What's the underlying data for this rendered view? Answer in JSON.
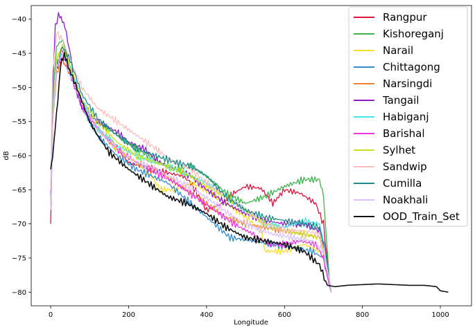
{
  "chart_data": {
    "type": "line",
    "title": "",
    "xlabel": "Longitude",
    "ylabel": "dB",
    "xlim": [
      -50,
      1080
    ],
    "ylim": [
      -82,
      -38
    ],
    "x_ticks": [
      0,
      200,
      400,
      600,
      800,
      1000
    ],
    "y_ticks": [
      -40,
      -45,
      -50,
      -55,
      -60,
      -65,
      -70,
      -75,
      -80
    ],
    "grid": false,
    "legend_position": "top-right",
    "series": [
      {
        "name": "Rangpur",
        "color": "#dc143c",
        "points": [
          [
            0,
            -70
          ],
          [
            5,
            -55
          ],
          [
            15,
            -47
          ],
          [
            30,
            -46
          ],
          [
            50,
            -48
          ],
          [
            80,
            -52
          ],
          [
            120,
            -56
          ],
          [
            170,
            -59
          ],
          [
            200,
            -61
          ],
          [
            260,
            -62
          ],
          [
            300,
            -62.5
          ],
          [
            340,
            -63
          ],
          [
            360,
            -64
          ],
          [
            380,
            -66
          ],
          [
            400,
            -68
          ],
          [
            440,
            -67
          ],
          [
            470,
            -65.5
          ],
          [
            500,
            -64.5
          ],
          [
            540,
            -64.8
          ],
          [
            570,
            -67
          ],
          [
            600,
            -65
          ],
          [
            640,
            -65.5
          ],
          [
            680,
            -67
          ],
          [
            700,
            -70
          ],
          [
            715,
            -78
          ],
          [
            720,
            -80
          ]
        ]
      },
      {
        "name": "Kishoreganj",
        "color": "#3cb44b",
        "points": [
          [
            0,
            -68
          ],
          [
            5,
            -52
          ],
          [
            15,
            -44
          ],
          [
            30,
            -43
          ],
          [
            50,
            -47
          ],
          [
            80,
            -52
          ],
          [
            120,
            -55
          ],
          [
            170,
            -57
          ],
          [
            220,
            -59
          ],
          [
            280,
            -61
          ],
          [
            320,
            -62
          ],
          [
            360,
            -61.5
          ],
          [
            400,
            -63
          ],
          [
            450,
            -65.5
          ],
          [
            500,
            -67
          ],
          [
            550,
            -66
          ],
          [
            600,
            -64.5
          ],
          [
            650,
            -63.5
          ],
          [
            690,
            -63.5
          ],
          [
            700,
            -66
          ],
          [
            715,
            -78
          ],
          [
            720,
            -80
          ]
        ]
      },
      {
        "name": "Narail",
        "color": "#f5dd2a",
        "points": [
          [
            0,
            -68
          ],
          [
            5,
            -55
          ],
          [
            15,
            -46
          ],
          [
            30,
            -44
          ],
          [
            50,
            -47
          ],
          [
            80,
            -52
          ],
          [
            120,
            -56
          ],
          [
            170,
            -59
          ],
          [
            220,
            -61
          ],
          [
            260,
            -63
          ],
          [
            280,
            -65
          ],
          [
            320,
            -65
          ],
          [
            360,
            -64
          ],
          [
            400,
            -65
          ],
          [
            450,
            -67
          ],
          [
            500,
            -69
          ],
          [
            540,
            -71
          ],
          [
            550,
            -74
          ],
          [
            600,
            -74
          ],
          [
            650,
            -73
          ],
          [
            690,
            -74
          ],
          [
            710,
            -76
          ],
          [
            720,
            -80
          ]
        ]
      },
      {
        "name": "Chittagong",
        "color": "#2f8bd0",
        "points": [
          [
            0,
            -68
          ],
          [
            5,
            -55
          ],
          [
            15,
            -47
          ],
          [
            30,
            -45
          ],
          [
            50,
            -48
          ],
          [
            80,
            -53
          ],
          [
            120,
            -57
          ],
          [
            170,
            -60
          ],
          [
            220,
            -62
          ],
          [
            260,
            -63
          ],
          [
            300,
            -64
          ],
          [
            340,
            -66
          ],
          [
            380,
            -68
          ],
          [
            420,
            -70
          ],
          [
            460,
            -72
          ],
          [
            520,
            -72.5
          ],
          [
            570,
            -73
          ],
          [
            620,
            -73.5
          ],
          [
            670,
            -74
          ],
          [
            700,
            -75
          ],
          [
            715,
            -79
          ],
          [
            720,
            -80
          ]
        ]
      },
      {
        "name": "Narsingdi",
        "color": "#f58231",
        "points": [
          [
            0,
            -68
          ],
          [
            5,
            -55
          ],
          [
            15,
            -48
          ],
          [
            30,
            -46
          ],
          [
            50,
            -48
          ],
          [
            80,
            -52
          ],
          [
            120,
            -56
          ],
          [
            170,
            -59
          ],
          [
            220,
            -61
          ],
          [
            270,
            -62
          ],
          [
            320,
            -64
          ],
          [
            360,
            -65.5
          ],
          [
            400,
            -67
          ],
          [
            450,
            -69
          ],
          [
            500,
            -70
          ],
          [
            550,
            -70.5
          ],
          [
            600,
            -71
          ],
          [
            650,
            -71.5
          ],
          [
            690,
            -72
          ],
          [
            705,
            -75
          ],
          [
            720,
            -80
          ]
        ]
      },
      {
        "name": "Tangail",
        "color": "#9018c8",
        "points": [
          [
            0,
            -66
          ],
          [
            5,
            -50
          ],
          [
            12,
            -41
          ],
          [
            20,
            -39.5
          ],
          [
            30,
            -40
          ],
          [
            40,
            -42
          ],
          [
            50,
            -45
          ],
          [
            60,
            -49
          ],
          [
            80,
            -53
          ],
          [
            120,
            -55
          ],
          [
            170,
            -56.5
          ],
          [
            200,
            -58
          ],
          [
            240,
            -59
          ],
          [
            280,
            -61
          ],
          [
            320,
            -62
          ],
          [
            360,
            -63
          ],
          [
            400,
            -65
          ],
          [
            450,
            -67
          ],
          [
            500,
            -68.5
          ],
          [
            550,
            -69.5
          ],
          [
            600,
            -70
          ],
          [
            650,
            -70
          ],
          [
            690,
            -71
          ],
          [
            705,
            -75
          ],
          [
            720,
            -80
          ]
        ]
      },
      {
        "name": "Habiganj",
        "color": "#46e6e6",
        "points": [
          [
            0,
            -68
          ],
          [
            5,
            -55
          ],
          [
            15,
            -47
          ],
          [
            30,
            -45
          ],
          [
            50,
            -47
          ],
          [
            80,
            -52
          ],
          [
            120,
            -56
          ],
          [
            170,
            -58.5
          ],
          [
            220,
            -60
          ],
          [
            270,
            -61
          ],
          [
            320,
            -62
          ],
          [
            360,
            -63
          ],
          [
            400,
            -64
          ],
          [
            450,
            -66
          ],
          [
            500,
            -68
          ],
          [
            550,
            -70
          ],
          [
            600,
            -70.5
          ],
          [
            650,
            -69.5
          ],
          [
            690,
            -70
          ],
          [
            705,
            -74
          ],
          [
            720,
            -80
          ]
        ]
      },
      {
        "name": "Barishal",
        "color": "#f032e6",
        "points": [
          [
            0,
            -68
          ],
          [
            5,
            -55
          ],
          [
            15,
            -47
          ],
          [
            30,
            -45
          ],
          [
            50,
            -48
          ],
          [
            80,
            -53
          ],
          [
            120,
            -56
          ],
          [
            170,
            -59
          ],
          [
            220,
            -61
          ],
          [
            270,
            -62.5
          ],
          [
            320,
            -64
          ],
          [
            370,
            -66
          ],
          [
            420,
            -68
          ],
          [
            470,
            -70
          ],
          [
            520,
            -71.5
          ],
          [
            560,
            -73
          ],
          [
            600,
            -73
          ],
          [
            640,
            -72.5
          ],
          [
            680,
            -73
          ],
          [
            700,
            -75
          ],
          [
            715,
            -79
          ],
          [
            720,
            -80
          ]
        ]
      },
      {
        "name": "Sylhet",
        "color": "#c8e01e",
        "points": [
          [
            0,
            -68
          ],
          [
            5,
            -55
          ],
          [
            15,
            -46
          ],
          [
            30,
            -44
          ],
          [
            50,
            -47
          ],
          [
            80,
            -52
          ],
          [
            120,
            -55
          ],
          [
            170,
            -58
          ],
          [
            220,
            -60
          ],
          [
            270,
            -61
          ],
          [
            320,
            -62
          ],
          [
            360,
            -63
          ],
          [
            400,
            -64.5
          ],
          [
            450,
            -66
          ],
          [
            500,
            -68
          ],
          [
            550,
            -70
          ],
          [
            600,
            -71
          ],
          [
            650,
            -71.5
          ],
          [
            690,
            -72
          ],
          [
            705,
            -75
          ],
          [
            720,
            -80
          ]
        ]
      },
      {
        "name": "Sandwip",
        "color": "#fabebe",
        "points": [
          [
            0,
            -65
          ],
          [
            5,
            -48
          ],
          [
            15,
            -42
          ],
          [
            30,
            -43
          ],
          [
            50,
            -46
          ],
          [
            80,
            -50
          ],
          [
            120,
            -53
          ],
          [
            170,
            -55
          ],
          [
            220,
            -57
          ],
          [
            270,
            -59
          ],
          [
            320,
            -61
          ],
          [
            360,
            -62
          ],
          [
            400,
            -64
          ],
          [
            450,
            -66
          ],
          [
            500,
            -68
          ],
          [
            550,
            -70
          ],
          [
            600,
            -71
          ],
          [
            650,
            -71
          ],
          [
            690,
            -71.5
          ],
          [
            705,
            -75
          ],
          [
            720,
            -80
          ]
        ]
      },
      {
        "name": "Cumilla",
        "color": "#1b8a8a",
        "points": [
          [
            0,
            -68
          ],
          [
            5,
            -55
          ],
          [
            15,
            -47
          ],
          [
            30,
            -44
          ],
          [
            50,
            -46
          ],
          [
            80,
            -51
          ],
          [
            120,
            -54.5
          ],
          [
            170,
            -57
          ],
          [
            220,
            -59
          ],
          [
            270,
            -60
          ],
          [
            320,
            -61
          ],
          [
            360,
            -61.5
          ],
          [
            400,
            -63
          ],
          [
            450,
            -66
          ],
          [
            500,
            -68
          ],
          [
            550,
            -69
          ],
          [
            600,
            -69.5
          ],
          [
            650,
            -70
          ],
          [
            690,
            -70.5
          ],
          [
            705,
            -74
          ],
          [
            720,
            -80
          ]
        ]
      },
      {
        "name": "Noakhali",
        "color": "#dcbeff",
        "points": [
          [
            0,
            -68
          ],
          [
            5,
            -55
          ],
          [
            15,
            -47
          ],
          [
            30,
            -45
          ],
          [
            50,
            -48
          ],
          [
            80,
            -52
          ],
          [
            120,
            -56
          ],
          [
            170,
            -59
          ],
          [
            220,
            -61
          ],
          [
            270,
            -62
          ],
          [
            320,
            -63.5
          ],
          [
            370,
            -65
          ],
          [
            420,
            -67
          ],
          [
            470,
            -69
          ],
          [
            520,
            -70.5
          ],
          [
            570,
            -71.5
          ],
          [
            620,
            -72
          ],
          [
            670,
            -72.5
          ],
          [
            700,
            -74
          ],
          [
            715,
            -78
          ],
          [
            720,
            -80
          ]
        ]
      },
      {
        "name": "OOD_Train_Set",
        "color": "#111111",
        "points": [
          [
            0,
            -62
          ],
          [
            5,
            -60
          ],
          [
            15,
            -54
          ],
          [
            25,
            -47
          ],
          [
            35,
            -45
          ],
          [
            45,
            -47
          ],
          [
            60,
            -49
          ],
          [
            80,
            -52
          ],
          [
            100,
            -55
          ],
          [
            120,
            -57
          ],
          [
            150,
            -59.5
          ],
          [
            200,
            -62
          ],
          [
            250,
            -64
          ],
          [
            300,
            -66
          ],
          [
            350,
            -67
          ],
          [
            400,
            -68.5
          ],
          [
            450,
            -70.5
          ],
          [
            500,
            -72
          ],
          [
            550,
            -72.5
          ],
          [
            600,
            -73
          ],
          [
            650,
            -74
          ],
          [
            690,
            -76
          ],
          [
            710,
            -79
          ],
          [
            730,
            -79.2
          ],
          [
            760,
            -79
          ],
          [
            800,
            -78.9
          ],
          [
            840,
            -78.8
          ],
          [
            880,
            -78.9
          ],
          [
            920,
            -79
          ],
          [
            960,
            -79
          ],
          [
            990,
            -79.2
          ],
          [
            1000,
            -79.8
          ],
          [
            1020,
            -80
          ]
        ]
      }
    ]
  }
}
